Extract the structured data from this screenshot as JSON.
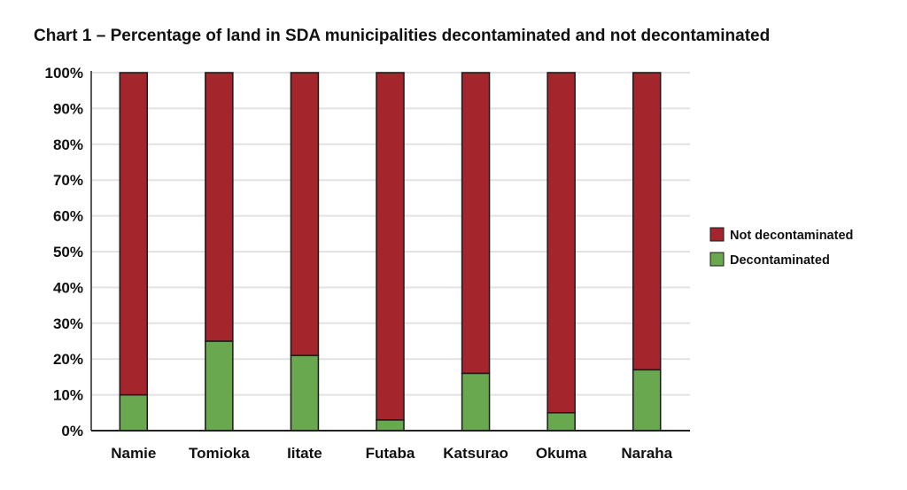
{
  "chart_data": {
    "type": "bar",
    "stacked": true,
    "title": "Chart 1 – Percentage of land in SDA municipalities decontaminated and not decontaminated",
    "xlabel": "",
    "ylabel": "",
    "ylim": [
      0,
      100
    ],
    "yticks": [
      "0%",
      "10%",
      "20%",
      "30%",
      "40%",
      "50%",
      "60%",
      "70%",
      "80%",
      "90%",
      "100%"
    ],
    "categories": [
      "Namie",
      "Tomioka",
      "Iitate",
      "Futaba",
      "Katsurao",
      "Okuma",
      "Naraha"
    ],
    "series": [
      {
        "name": "Decontaminated",
        "color": "#6aa84f",
        "values": [
          10,
          25,
          21,
          3,
          16,
          5,
          17
        ]
      },
      {
        "name": "Not decontaminated",
        "color": "#a4262c",
        "values": [
          90,
          75,
          79,
          97,
          84,
          95,
          83
        ]
      }
    ],
    "legend": {
      "position": "right",
      "order": [
        "Not decontaminated",
        "Decontaminated"
      ]
    },
    "grid": true
  }
}
